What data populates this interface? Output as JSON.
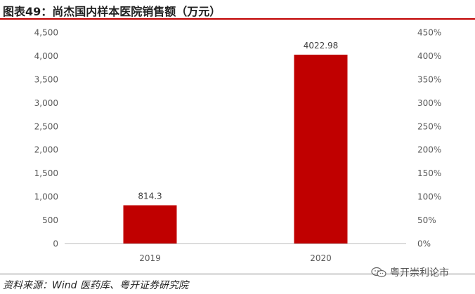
{
  "header": {
    "title": "图表49：尚杰国内样本医院销售额（万元）"
  },
  "footer": {
    "source": "资料来源：Wind 医药库、粤开证券研究院",
    "watermark": "粤开崇利论市",
    "watermark_icon": "wechat-icon"
  },
  "chart_data": {
    "type": "bar",
    "title": "",
    "categories": [
      "2019",
      "2020"
    ],
    "values": [
      814.3,
      4022.98
    ],
    "value_labels": [
      "814.3",
      "4022.98"
    ],
    "xlabel": "",
    "ylabel": "",
    "ylim": [
      0,
      4500
    ],
    "y_ticks": [
      "0",
      "500",
      "1,000",
      "1,500",
      "2,000",
      "2,500",
      "3,000",
      "3,500",
      "4,000",
      "4,500"
    ],
    "y2lim": [
      0,
      450
    ],
    "y2_ticks": [
      "0%",
      "50%",
      "100%",
      "150%",
      "200%",
      "250%",
      "300%",
      "350%",
      "400%",
      "450%"
    ],
    "grid": false,
    "bar_color": "#c00000"
  }
}
